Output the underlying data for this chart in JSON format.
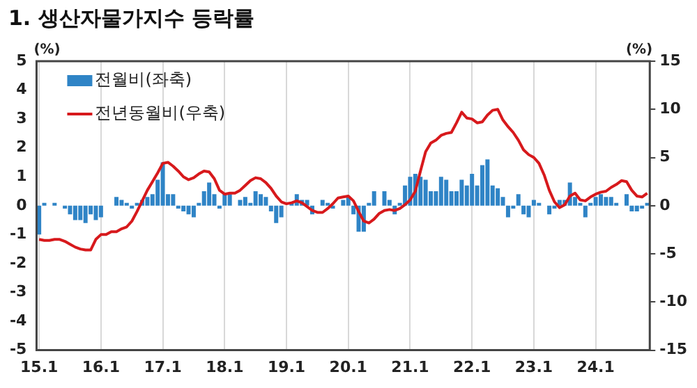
{
  "chart_data": {
    "type": "bar",
    "title": "1. 생산자물가지수 등락률",
    "ylabel": "(%)",
    "y2label": "(%)",
    "categories": [
      "15.1",
      null,
      null,
      null,
      null,
      null,
      null,
      null,
      null,
      null,
      null,
      null,
      "16.1",
      null,
      null,
      null,
      null,
      null,
      null,
      null,
      null,
      null,
      null,
      null,
      "17.1",
      null,
      null,
      null,
      null,
      null,
      null,
      null,
      null,
      null,
      null,
      null,
      "18.1",
      null,
      null,
      null,
      null,
      null,
      null,
      null,
      null,
      null,
      null,
      null,
      "19.1",
      null,
      null,
      null,
      null,
      null,
      null,
      null,
      null,
      null,
      null,
      null,
      "20.1",
      null,
      null,
      null,
      null,
      null,
      null,
      null,
      null,
      null,
      null,
      null,
      "21.1",
      null,
      null,
      null,
      null,
      null,
      null,
      null,
      null,
      null,
      null,
      null,
      "22.1",
      null,
      null,
      null,
      null,
      null,
      null,
      null,
      null,
      null,
      null,
      null,
      "23.1",
      null,
      null,
      null,
      null,
      null,
      null,
      null,
      null,
      null,
      null,
      null,
      "24.1",
      null,
      null,
      null,
      null,
      null,
      null,
      null,
      null,
      null,
      null
    ],
    "series": [
      {
        "name": "전월비(좌축)",
        "color": "#2f84c6",
        "values": [
          -1.0,
          0.1,
          0.0,
          0.1,
          0.0,
          -0.1,
          -0.3,
          -0.5,
          -0.5,
          -0.6,
          -0.3,
          -0.5,
          -0.4,
          0.0,
          0.0,
          0.3,
          0.2,
          0.1,
          -0.1,
          0.1,
          0.2,
          0.3,
          0.4,
          0.9,
          1.5,
          0.4,
          0.4,
          -0.1,
          -0.2,
          -0.3,
          -0.4,
          0.1,
          0.5,
          0.8,
          0.4,
          -0.1,
          0.4,
          0.4,
          0.0,
          0.2,
          0.3,
          0.1,
          0.5,
          0.4,
          0.3,
          -0.2,
          -0.6,
          -0.4,
          0.0,
          0.1,
          0.4,
          0.2,
          0.2,
          -0.3,
          0.0,
          0.2,
          0.1,
          -0.1,
          0.0,
          0.2,
          0.3,
          -0.3,
          -0.9,
          -0.9,
          0.1,
          0.5,
          0.0,
          0.5,
          0.2,
          -0.3,
          0.1,
          0.7,
          1.0,
          1.1,
          1.0,
          0.9,
          0.5,
          0.5,
          1.0,
          0.9,
          0.5,
          0.5,
          0.9,
          0.7,
          1.1,
          0.7,
          1.4,
          1.6,
          0.7,
          0.6,
          0.3,
          -0.4,
          -0.1,
          0.4,
          -0.3,
          -0.4,
          0.2,
          0.1,
          0.0,
          -0.3,
          -0.1,
          0.2,
          0.2,
          0.8,
          0.3,
          0.1,
          -0.4,
          0.1,
          0.3,
          0.4,
          0.3,
          0.3,
          0.1,
          0.0,
          0.4,
          -0.2,
          -0.2,
          -0.1,
          0.1
        ]
      },
      {
        "name": "전년동월비(우축)",
        "type": "line",
        "axis": "y2",
        "color": "#d7191c",
        "values": [
          -3.5,
          -3.6,
          -3.6,
          -3.5,
          -3.5,
          -3.7,
          -4.0,
          -4.3,
          -4.5,
          -4.6,
          -4.6,
          -3.5,
          -3.0,
          -3.0,
          -2.7,
          -2.7,
          -2.4,
          -2.2,
          -1.6,
          -0.6,
          0.5,
          1.6,
          2.5,
          3.4,
          4.4,
          4.5,
          4.1,
          3.6,
          3.0,
          2.7,
          2.9,
          3.3,
          3.6,
          3.5,
          2.8,
          1.6,
          1.2,
          1.3,
          1.3,
          1.6,
          2.1,
          2.6,
          2.9,
          2.8,
          2.4,
          1.8,
          1.0,
          0.4,
          0.2,
          0.3,
          0.5,
          0.3,
          -0.1,
          -0.5,
          -0.7,
          -0.7,
          -0.3,
          0.2,
          0.8,
          0.9,
          1.0,
          0.5,
          -0.6,
          -1.6,
          -1.8,
          -1.4,
          -0.8,
          -0.5,
          -0.4,
          -0.5,
          -0.3,
          0.1,
          0.6,
          1.5,
          3.6,
          5.6,
          6.5,
          6.8,
          7.3,
          7.5,
          7.6,
          8.6,
          9.7,
          9.1,
          9.0,
          8.6,
          8.7,
          9.4,
          9.9,
          10.0,
          8.9,
          8.2,
          7.6,
          6.8,
          5.8,
          5.3,
          5.0,
          4.4,
          3.2,
          1.6,
          0.4,
          -0.2,
          0.1,
          1.0,
          1.3,
          0.6,
          0.5,
          0.9,
          1.2,
          1.4,
          1.5,
          1.9,
          2.2,
          2.6,
          2.5,
          1.6,
          1.0,
          0.9,
          1.3
        ]
      }
    ],
    "ylim": [
      -5,
      5
    ],
    "yticks": [
      -5,
      -4,
      -3,
      -2,
      -1,
      0,
      1,
      2,
      3,
      4,
      5
    ],
    "y2lim": [
      -15,
      15
    ],
    "y2ticks": [
      -15,
      -10,
      -5,
      0,
      5,
      10,
      15
    ],
    "grid": "x",
    "legend": "top left",
    "marker": "none",
    "line_style": "solid"
  }
}
